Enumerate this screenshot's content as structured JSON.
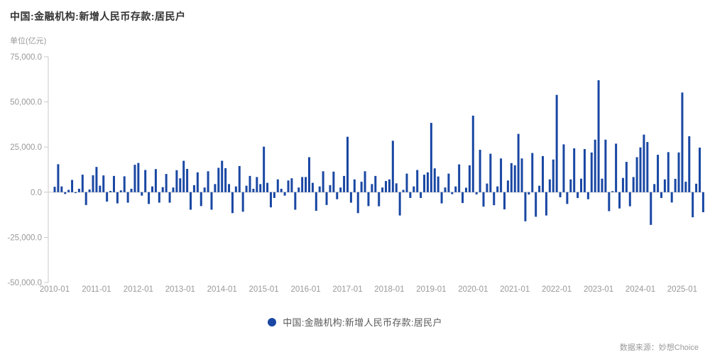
{
  "header": {
    "title": "中国:金融机构:新增人民币存款:居民户",
    "unit_label": "单位(亿元)"
  },
  "legend": {
    "label": "中国:金融机构:新增人民币存款:居民户",
    "marker_color": "#1947a3"
  },
  "footer": {
    "source": "数据来源：妙想Choice"
  },
  "colors": {
    "bar": "#1947a3",
    "axis_line": "#c9c9c9",
    "tick_label": "#999999"
  },
  "chart_data": {
    "type": "bar",
    "title": "中国:金融机构:新增人民币存款:居民户",
    "unit": "亿元",
    "xlabel": "",
    "ylabel": "单位(亿元)",
    "ylim": [
      -50000,
      75000
    ],
    "grid": false,
    "legend_position": "bottom-center",
    "bar_color": "#1947a3",
    "y_ticks": [
      {
        "value": 75000,
        "label": "75,000.0"
      },
      {
        "value": 50000,
        "label": "50,000.0"
      },
      {
        "value": 25000,
        "label": "25,000.0"
      },
      {
        "value": 0,
        "label": "0.0"
      },
      {
        "value": -25000,
        "label": "-25,000.0"
      },
      {
        "value": -50000,
        "label": "-50,000.0"
      }
    ],
    "x_tick_labels": [
      "2010-01",
      "2011-01",
      "2012-01",
      "2013-01",
      "2014-01",
      "2015-01",
      "2016-01",
      "2017-01",
      "2018-01",
      "2019-01",
      "2020-01",
      "2021-01",
      "2022-01",
      "2023-01",
      "2024-01",
      "2025-01"
    ],
    "start_month": "2010-01",
    "end_month": "2025-07",
    "series_name": "中国:金融机构:新增人民币存款:居民户",
    "values_by_year": {
      "2010": [
        3000,
        15500,
        3200,
        -1000,
        1300,
        6800,
        -500,
        1900,
        9700,
        -7100,
        1500,
        9400
      ],
      "2011": [
        14000,
        3600,
        9300,
        -5200,
        700,
        9000,
        -6200,
        1000,
        8800,
        -5800,
        1900,
        15200
      ],
      "2012": [
        16200,
        -1900,
        12300,
        -6500,
        3200,
        12800,
        -5800,
        2800,
        10100,
        -5800,
        2600,
        12200
      ],
      "2013": [
        7700,
        17400,
        12900,
        -9700,
        3900,
        11000,
        -7700,
        2600,
        11600,
        -9700,
        4500,
        13500
      ],
      "2014": [
        17400,
        13300,
        4500,
        -11600,
        3200,
        14500,
        -10800,
        3600,
        9000,
        1900,
        8400,
        4500
      ],
      "2015": [
        25200,
        5200,
        -8400,
        -3200,
        7100,
        1900,
        -1900,
        6500,
        7700,
        -9700,
        2600,
        8400
      ],
      "2016": [
        8400,
        19400,
        5200,
        -10300,
        3200,
        11600,
        -7100,
        3900,
        11400,
        -3900,
        2600,
        9000
      ],
      "2017": [
        30700,
        -5800,
        7100,
        -11600,
        5800,
        11600,
        -7700,
        4500,
        9000,
        -7800,
        2600,
        6200
      ],
      "2018": [
        7100,
        28500,
        4900,
        -12900,
        1300,
        10300,
        -3200,
        3200,
        12300,
        -3200,
        9700,
        11000
      ],
      "2019": [
        38400,
        13200,
        8700,
        -6200,
        2600,
        10300,
        -1100,
        3200,
        15400,
        -6000,
        2500,
        14900
      ],
      "2020": [
        42400,
        -1200,
        23500,
        -8000,
        4800,
        21300,
        -7200,
        3200,
        18700,
        -9500,
        6500,
        16100
      ],
      "2021": [
        14900,
        32300,
        18700,
        -16100,
        -1300,
        21700,
        -13600,
        3600,
        20000,
        -12900,
        7100,
        18100
      ],
      "2022": [
        53900,
        -2800,
        26500,
        -6500,
        7100,
        24300,
        -3200,
        7500,
        23900,
        -3900,
        22000,
        29100
      ],
      "2023": [
        62000,
        7500,
        29100,
        -10500,
        600,
        26900,
        -9000,
        7900,
        16800,
        -7800,
        8400,
        19400
      ],
      "2024": [
        24800,
        31900,
        27800,
        -18100,
        4500,
        20700,
        -3200,
        7100,
        22200,
        -5700,
        7400,
        22000
      ],
      "2025": [
        55200,
        5800,
        31000,
        -13900,
        4700,
        24700,
        -11100
      ]
    }
  }
}
